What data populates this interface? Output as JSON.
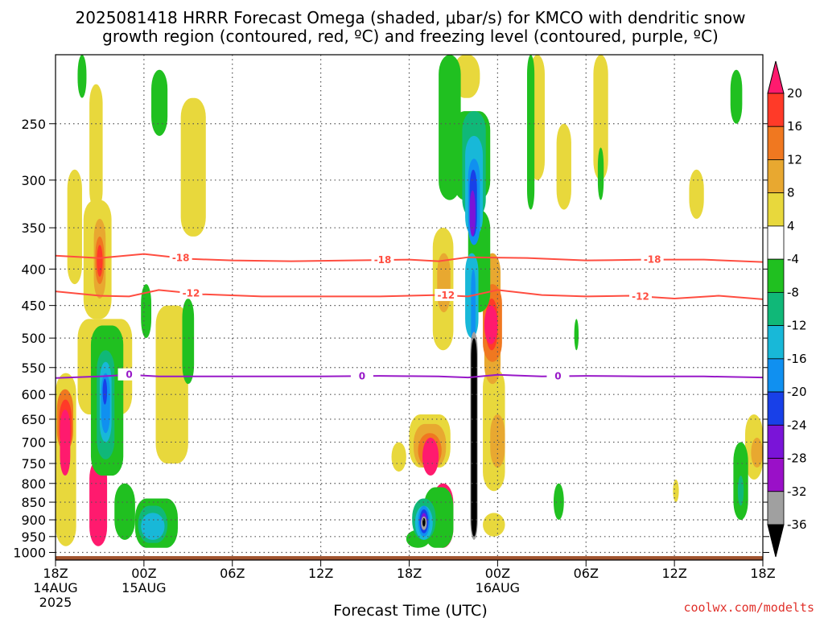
{
  "chart_data": {
    "type": "heatmap",
    "title_line1": "2025081418 HRRR Forecast Omega (shaded, μbar/s) for KMCO with dendritic snow",
    "title_line2": "growth region (contoured, red, ºC) and freezing level (contoured, purple, ºC)",
    "xlabel": "Forecast Time (UTC)",
    "ylabel": "",
    "credit": "coolwx.com/modelts",
    "x_ticks": [
      {
        "hour": 0,
        "label": "18Z",
        "sub1": "14AUG",
        "sub2": "2025"
      },
      {
        "hour": 6,
        "label": "00Z",
        "sub1": "15AUG",
        "sub2": ""
      },
      {
        "hour": 12,
        "label": "06Z",
        "sub1": "",
        "sub2": ""
      },
      {
        "hour": 18,
        "label": "12Z",
        "sub1": "",
        "sub2": ""
      },
      {
        "hour": 24,
        "label": "18Z",
        "sub1": "",
        "sub2": ""
      },
      {
        "hour": 30,
        "label": "00Z",
        "sub1": "16AUG",
        "sub2": ""
      },
      {
        "hour": 36,
        "label": "06Z",
        "sub1": "",
        "sub2": ""
      },
      {
        "hour": 42,
        "label": "12Z",
        "sub1": "",
        "sub2": ""
      },
      {
        "hour": 48,
        "label": "18Z",
        "sub1": "",
        "sub2": ""
      }
    ],
    "xlim": [
      0,
      48
    ],
    "y_ticks": [
      250,
      300,
      350,
      400,
      450,
      500,
      550,
      600,
      650,
      700,
      750,
      800,
      850,
      900,
      950,
      1000
    ],
    "ylim": [
      1025,
      200
    ],
    "y_log": true,
    "grid": true,
    "colorbar": {
      "ticks": [
        "20",
        "16",
        "12",
        "8",
        "4",
        "-4",
        "-8",
        "-12",
        "-16",
        "-20",
        "-24",
        "-28",
        "-32",
        "-36"
      ],
      "colors": [
        "#ff1a6e",
        "#ff3a28",
        "#f07820",
        "#e8a830",
        "#e8d83c",
        "#ffffff",
        "#20c020",
        "#10b878",
        "#18b8d8",
        "#1090f0",
        "#1840e8",
        "#7a14d8",
        "#9a10c8",
        "#a0a0a0",
        "#000000"
      ]
    },
    "shading": [
      {
        "level": 4,
        "color": "#e8d83c",
        "cells": [
          {
            "x0": 0.0,
            "x1": 1.4,
            "p0": 560,
            "p1": 980
          },
          {
            "x0": 0.8,
            "x1": 1.8,
            "p0": 290,
            "p1": 420
          },
          {
            "x0": 2.3,
            "x1": 3.2,
            "p0": 220,
            "p1": 330
          },
          {
            "x0": 1.9,
            "x1": 3.8,
            "p0": 320,
            "p1": 470
          },
          {
            "x0": 1.5,
            "x1": 5.2,
            "p0": 470,
            "p1": 640
          },
          {
            "x0": 8.5,
            "x1": 10.2,
            "p0": 230,
            "p1": 360
          },
          {
            "x0": 6.8,
            "x1": 9.0,
            "p0": 450,
            "p1": 750
          },
          {
            "x0": 22.8,
            "x1": 23.8,
            "p0": 700,
            "p1": 770
          },
          {
            "x0": 25.6,
            "x1": 27.0,
            "p0": 350,
            "p1": 520
          },
          {
            "x0": 24.0,
            "x1": 26.8,
            "p0": 640,
            "p1": 760
          },
          {
            "x0": 27.0,
            "x1": 28.8,
            "p0": 200,
            "p1": 230
          },
          {
            "x0": 29.0,
            "x1": 30.5,
            "p0": 550,
            "p1": 820
          },
          {
            "x0": 29.0,
            "x1": 30.5,
            "p0": 880,
            "p1": 950
          },
          {
            "x0": 32.2,
            "x1": 33.2,
            "p0": 200,
            "p1": 300
          },
          {
            "x0": 34.0,
            "x1": 35.0,
            "p0": 250,
            "p1": 330
          },
          {
            "x0": 36.5,
            "x1": 37.5,
            "p0": 200,
            "p1": 300
          },
          {
            "x0": 43.0,
            "x1": 44.0,
            "p0": 290,
            "p1": 340
          },
          {
            "x0": 41.9,
            "x1": 42.3,
            "p0": 790,
            "p1": 850
          },
          {
            "x0": 46.8,
            "x1": 48.0,
            "p0": 640,
            "p1": 790
          }
        ]
      },
      {
        "level": 8,
        "color": "#e8a830",
        "cells": [
          {
            "x0": 2.6,
            "x1": 3.4,
            "p0": 340,
            "p1": 440
          },
          {
            "x0": 24.3,
            "x1": 26.5,
            "p0": 660,
            "p1": 760
          },
          {
            "x0": 25.9,
            "x1": 26.8,
            "p0": 380,
            "p1": 460
          },
          {
            "x0": 29.1,
            "x1": 30.2,
            "p0": 380,
            "p1": 580
          },
          {
            "x0": 29.5,
            "x1": 30.5,
            "p0": 640,
            "p1": 760
          },
          {
            "x0": 47.2,
            "x1": 48.0,
            "p0": 690,
            "p1": 760
          }
        ]
      },
      {
        "level": 12,
        "color": "#f07820",
        "cells": [
          {
            "x0": 0.1,
            "x1": 1.2,
            "p0": 590,
            "p1": 720
          },
          {
            "x0": 2.7,
            "x1": 3.3,
            "p0": 360,
            "p1": 420
          },
          {
            "x0": 24.6,
            "x1": 26.2,
            "p0": 680,
            "p1": 760
          },
          {
            "x0": 29.0,
            "x1": 30.3,
            "p0": 420,
            "p1": 540
          }
        ]
      },
      {
        "level": 16,
        "color": "#ff3a28",
        "cells": [
          {
            "x0": 0.25,
            "x1": 1.1,
            "p0": 610,
            "p1": 720
          },
          {
            "x0": 2.8,
            "x1": 3.2,
            "p0": 370,
            "p1": 410
          },
          {
            "x0": 29.2,
            "x1": 30.0,
            "p0": 440,
            "p1": 520
          }
        ]
      },
      {
        "level": 20,
        "color": "#ff1a6e",
        "cells": [
          {
            "x0": 0.3,
            "x1": 1.0,
            "p0": 630,
            "p1": 780
          },
          {
            "x0": 2.3,
            "x1": 3.5,
            "p0": 740,
            "p1": 980
          },
          {
            "x0": 24.9,
            "x1": 26.0,
            "p0": 690,
            "p1": 780
          },
          {
            "x0": 25.6,
            "x1": 27.0,
            "p0": 800,
            "p1": 985
          },
          {
            "x0": 29.1,
            "x1": 30.0,
            "p0": 450,
            "p1": 510
          }
        ]
      },
      {
        "level": -4,
        "color": "#20c020",
        "cells": [
          {
            "x0": 1.5,
            "x1": 2.1,
            "p0": 200,
            "p1": 230
          },
          {
            "x0": 6.5,
            "x1": 7.6,
            "p0": 210,
            "p1": 260
          },
          {
            "x0": 5.8,
            "x1": 6.5,
            "p0": 420,
            "p1": 500
          },
          {
            "x0": 2.4,
            "x1": 4.6,
            "p0": 480,
            "p1": 780
          },
          {
            "x0": 4.0,
            "x1": 5.4,
            "p0": 800,
            "p1": 960
          },
          {
            "x0": 5.4,
            "x1": 8.3,
            "p0": 840,
            "p1": 985
          },
          {
            "x0": 8.6,
            "x1": 9.4,
            "p0": 440,
            "p1": 580
          },
          {
            "x0": 23.8,
            "x1": 25.4,
            "p0": 930,
            "p1": 985
          },
          {
            "x0": 25.0,
            "x1": 27.0,
            "p0": 810,
            "p1": 985
          },
          {
            "x0": 26.0,
            "x1": 27.5,
            "p0": 200,
            "p1": 320
          },
          {
            "x0": 27.0,
            "x1": 29.5,
            "p0": 240,
            "p1": 320
          },
          {
            "x0": 28.0,
            "x1": 29.5,
            "p0": 330,
            "p1": 460
          },
          {
            "x0": 32.0,
            "x1": 32.5,
            "p0": 200,
            "p1": 330
          },
          {
            "x0": 35.2,
            "x1": 35.5,
            "p0": 470,
            "p1": 520
          },
          {
            "x0": 36.8,
            "x1": 37.2,
            "p0": 270,
            "p1": 320
          },
          {
            "x0": 33.8,
            "x1": 34.5,
            "p0": 800,
            "p1": 900
          },
          {
            "x0": 45.8,
            "x1": 46.6,
            "p0": 210,
            "p1": 250
          },
          {
            "x0": 46.0,
            "x1": 47.0,
            "p0": 700,
            "p1": 900
          }
        ]
      },
      {
        "level": -8,
        "color": "#10b878",
        "cells": [
          {
            "x0": 2.8,
            "x1": 4.0,
            "p0": 520,
            "p1": 740
          },
          {
            "x0": 5.6,
            "x1": 7.6,
            "p0": 860,
            "p1": 970
          },
          {
            "x0": 24.2,
            "x1": 25.8,
            "p0": 840,
            "p1": 960
          },
          {
            "x0": 27.6,
            "x1": 29.2,
            "p0": 240,
            "p1": 340
          },
          {
            "x0": 46.3,
            "x1": 46.7,
            "p0": 780,
            "p1": 860
          }
        ]
      },
      {
        "level": -12,
        "color": "#18b8d8",
        "cells": [
          {
            "x0": 3.0,
            "x1": 3.8,
            "p0": 540,
            "p1": 700
          },
          {
            "x0": 5.8,
            "x1": 7.4,
            "p0": 880,
            "p1": 960
          },
          {
            "x0": 24.4,
            "x1": 25.6,
            "p0": 860,
            "p1": 960
          },
          {
            "x0": 27.8,
            "x1": 29.0,
            "p0": 260,
            "p1": 360
          },
          {
            "x0": 27.8,
            "x1": 28.7,
            "p0": 380,
            "p1": 500
          }
        ]
      },
      {
        "level": -16,
        "color": "#1090f0",
        "cells": [
          {
            "x0": 3.1,
            "x1": 3.7,
            "p0": 560,
            "p1": 680
          },
          {
            "x0": 24.6,
            "x1": 25.4,
            "p0": 860,
            "p1": 950
          },
          {
            "x0": 28.0,
            "x1": 28.8,
            "p0": 280,
            "p1": 370
          },
          {
            "x0": 28.2,
            "x1": 28.5,
            "p0": 400,
            "p1": 820
          }
        ]
      },
      {
        "level": -20,
        "color": "#1840e8",
        "cells": [
          {
            "x0": 3.2,
            "x1": 3.5,
            "p0": 570,
            "p1": 620
          },
          {
            "x0": 24.7,
            "x1": 25.3,
            "p0": 870,
            "p1": 940
          },
          {
            "x0": 28.1,
            "x1": 28.6,
            "p0": 290,
            "p1": 360
          }
        ]
      },
      {
        "level": -24,
        "color": "#7a14d8",
        "cells": [
          {
            "x0": 28.1,
            "x1": 28.5,
            "p0": 310,
            "p1": 360
          },
          {
            "x0": 24.8,
            "x1": 25.2,
            "p0": 880,
            "p1": 930
          }
        ]
      },
      {
        "level": -32,
        "color": "#a0a0a0",
        "cells": [
          {
            "x0": 24.8,
            "x1": 25.2,
            "p0": 890,
            "p1": 930
          },
          {
            "x0": 28.15,
            "x1": 28.65,
            "p0": 490,
            "p1": 960
          }
        ]
      },
      {
        "level": -36,
        "color": "#000000",
        "cells": [
          {
            "x0": 24.9,
            "x1": 25.1,
            "p0": 895,
            "p1": 920
          },
          {
            "x0": 28.2,
            "x1": 28.6,
            "p0": 500,
            "p1": 950
          }
        ]
      }
    ],
    "contours": [
      {
        "name": "-18",
        "color": "#ff4d40",
        "label": "-18",
        "points": [
          [
            0,
            383
          ],
          [
            3,
            386
          ],
          [
            6,
            381
          ],
          [
            9,
            387
          ],
          [
            12,
            389
          ],
          [
            16,
            390
          ],
          [
            20,
            389
          ],
          [
            24,
            388
          ],
          [
            26,
            390
          ],
          [
            28,
            385
          ],
          [
            32,
            386
          ],
          [
            36,
            389
          ],
          [
            40,
            388
          ],
          [
            44,
            388
          ],
          [
            48,
            391
          ]
        ],
        "label_hours": [
          8.5,
          22.2,
          40.5
        ]
      },
      {
        "name": "-12",
        "color": "#ff4d40",
        "label": "-12",
        "points": [
          [
            0,
            430
          ],
          [
            3,
            436
          ],
          [
            5,
            437
          ],
          [
            7,
            428
          ],
          [
            10,
            434
          ],
          [
            14,
            437
          ],
          [
            18,
            437
          ],
          [
            22,
            437
          ],
          [
            26,
            435
          ],
          [
            28,
            437
          ],
          [
            30,
            428
          ],
          [
            33,
            435
          ],
          [
            36,
            437
          ],
          [
            39,
            436
          ],
          [
            42,
            440
          ],
          [
            45,
            436
          ],
          [
            48,
            441
          ]
        ],
        "label_hours": [
          9.2,
          26.5,
          39.7
        ]
      },
      {
        "name": "0",
        "color": "#9818c8",
        "label": "0",
        "points": [
          [
            0,
            569
          ],
          [
            3,
            566
          ],
          [
            5,
            563
          ],
          [
            7,
            566
          ],
          [
            10,
            566
          ],
          [
            14,
            566
          ],
          [
            18,
            566
          ],
          [
            22,
            565
          ],
          [
            26,
            566
          ],
          [
            28,
            568
          ],
          [
            30,
            563
          ],
          [
            33,
            566
          ],
          [
            36,
            565
          ],
          [
            40,
            566
          ],
          [
            44,
            566
          ],
          [
            48,
            568
          ]
        ],
        "label_hours": [
          5.0,
          20.8,
          34.1
        ]
      }
    ],
    "ground_level_hpa": 1012
  }
}
